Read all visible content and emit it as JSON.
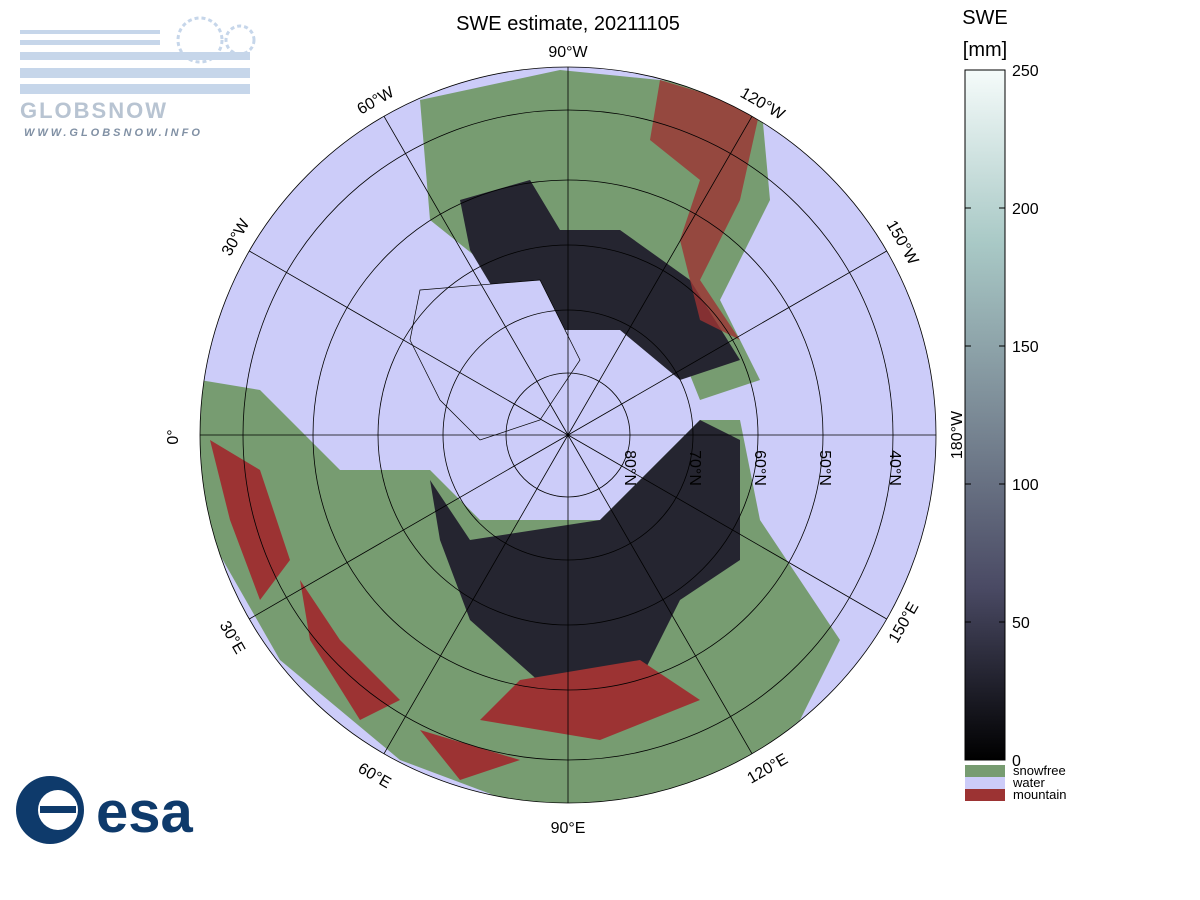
{
  "header": {
    "logo_text": "GLOBSNOW",
    "logo_url": "WWW.GLOBSNOW.INFO"
  },
  "map": {
    "title": "SWE estimate, 20211105",
    "longitude_labels": [
      "90°W",
      "120°W",
      "150°W",
      "180°W",
      "150°E",
      "120°E",
      "90°E",
      "60°E",
      "30°E",
      "0°",
      "30°W",
      "60°W"
    ],
    "latitude_labels": [
      "80°N",
      "70°N",
      "60°N",
      "50°N",
      "40°N"
    ]
  },
  "colorbar": {
    "title": "SWE",
    "unit": "[mm]",
    "range": [
      0,
      250
    ],
    "ticks": [
      0,
      50,
      100,
      150,
      200,
      250
    ],
    "colors": [
      "#000000",
      "#4a4a64",
      "#7b8a96",
      "#a9c9c6",
      "#f5fbfa"
    ]
  },
  "legend": [
    {
      "name": "snowfree",
      "color": "#779c71"
    },
    {
      "name": "water",
      "color": "#ccccf9"
    },
    {
      "name": "mountain",
      "color": "#9c3333"
    }
  ],
  "footer": {
    "logo": "esa"
  }
}
